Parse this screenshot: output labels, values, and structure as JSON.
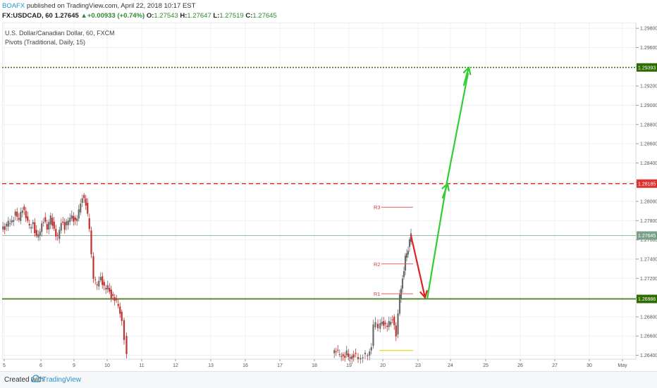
{
  "header": {
    "author": "BOAFX",
    "published": "published on TradingView.com, April 22, 2018 10:17 EST",
    "symbol": "FX:USDCAD, 60",
    "last": "1.27645",
    "change": "+0.00933 (+0.74%)",
    "o_label": "O:",
    "o": "1.27543",
    "h_label": "H:",
    "h": "1.27647",
    "l_label": "L:",
    "l": "1.27519",
    "c_label": "C:",
    "c": "1.27645"
  },
  "footer": {
    "created": "Created with",
    "brand": "TradingView"
  },
  "colors": {
    "up": "#6b6b6b",
    "down": "#c03030",
    "accent_green": "#2e8b2e",
    "arrow_green": "#33cc33",
    "arrow_red": "#dd2222",
    "resistance_red": "#e03030",
    "pivot_red": "#e06060",
    "s_yellow": "#e8d800",
    "brand": "#2196c9"
  },
  "chart_data": {
    "type": "candlestick",
    "instrument": "U.S. Dollar/Canadian Dollar, 60, FXCM",
    "indicator": "Pivots (Traditional, Daily, 15)",
    "ylim": [
      1.2636,
      1.2986
    ],
    "yticks": [
      "1.26400",
      "1.26600",
      "1.26800",
      "1.27000",
      "1.27200",
      "1.27400",
      "1.27600",
      "1.27800",
      "1.28000",
      "1.28200",
      "1.28400",
      "1.28600",
      "1.28800",
      "1.29000",
      "1.29200",
      "1.29400",
      "1.29600",
      "1.29800"
    ],
    "xticks": [
      "5",
      "6",
      "9",
      "10",
      "11",
      "12",
      "13",
      "16",
      "17",
      "18",
      "19",
      "20",
      "23",
      "24",
      "25",
      "26",
      "27",
      "30",
      "May"
    ],
    "price_series": [
      {
        "segment": "early",
        "points": [
          [
            0,
            1.2771
          ],
          [
            5,
            1.2772
          ],
          [
            10,
            1.2779
          ],
          [
            15,
            1.2778
          ],
          [
            20,
            1.2788
          ],
          [
            25,
            1.2782
          ],
          [
            30,
            1.2793
          ],
          [
            35,
            1.2784
          ],
          [
            40,
            1.2774
          ],
          [
            45,
            1.2776
          ],
          [
            50,
            1.2763
          ],
          [
            55,
            1.277
          ],
          [
            60,
            1.2781
          ],
          [
            65,
            1.2772
          ],
          [
            70,
            1.2784
          ],
          [
            75,
            1.2769
          ],
          [
            80,
            1.2763
          ],
          [
            85,
            1.2779
          ],
          [
            90,
            1.2773
          ],
          [
            95,
            1.2781
          ],
          [
            100,
            1.2784
          ],
          [
            105,
            1.2778
          ],
          [
            110,
            1.2791
          ],
          [
            115,
            1.2805
          ],
          [
            120,
            1.2798
          ],
          [
            125,
            1.2772
          ],
          [
            128,
            1.2745
          ],
          [
            131,
            1.2718
          ],
          [
            136,
            1.2714
          ],
          [
            141,
            1.272
          ],
          [
            146,
            1.271
          ],
          [
            151,
            1.2712
          ],
          [
            156,
            1.2701
          ],
          [
            161,
            1.2699
          ],
          [
            166,
            1.2692
          ],
          [
            171,
            1.2674
          ],
          [
            175,
            1.2658
          ],
          [
            178,
            1.2639
          ]
        ]
      },
      {
        "segment": "late",
        "points": [
          [
            470,
            1.264
          ],
          [
            475,
            1.2646
          ],
          [
            480,
            1.2641
          ],
          [
            485,
            1.2637
          ],
          [
            490,
            1.2643
          ],
          [
            495,
            1.2637
          ],
          [
            500,
            1.264
          ],
          [
            510,
            1.2637
          ],
          [
            520,
            1.2642
          ],
          [
            525,
            1.2649
          ],
          [
            528,
            1.2671
          ],
          [
            531,
            1.2675
          ],
          [
            535,
            1.267
          ],
          [
            540,
            1.2674
          ],
          [
            545,
            1.267
          ],
          [
            550,
            1.2674
          ],
          [
            555,
            1.2678
          ],
          [
            560,
            1.2662
          ],
          [
            563,
            1.2681
          ],
          [
            565,
            1.2701
          ],
          [
            567,
            1.2708
          ],
          [
            569,
            1.2722
          ],
          [
            571,
            1.2728
          ],
          [
            573,
            1.2741
          ],
          [
            575,
            1.2746
          ],
          [
            577,
            1.2751
          ],
          [
            579,
            1.276
          ],
          [
            581,
            1.27645
          ]
        ]
      }
    ],
    "pivot_levels": [
      {
        "name": "R3",
        "value": 1.2794
      },
      {
        "name": "R2",
        "value": 1.2735
      },
      {
        "name": "R1",
        "value": 1.2704
      },
      {
        "name": "S",
        "value": 1.2645
      }
    ],
    "horizontal_levels": [
      {
        "value": 1.29393,
        "label": "1.29393",
        "style": "dotted",
        "color": "#2e6b00"
      },
      {
        "value": 1.28185,
        "label": "1.28185",
        "style": "dashed",
        "color": "#e03030"
      },
      {
        "value": 1.27645,
        "label": "1.27645",
        "style": "thin",
        "color": "#7aa08a"
      },
      {
        "value": 1.26986,
        "label": "1.26986",
        "style": "solid",
        "color": "#2e6b00"
      }
    ],
    "arrows": [
      {
        "color": "red",
        "from_price": 1.27645,
        "to_price": 1.26986
      },
      {
        "color": "green",
        "from_price": 1.26986,
        "to_price": 1.28185
      },
      {
        "color": "green",
        "from_price": 1.28185,
        "to_price": 1.29393
      }
    ],
    "grid": true
  }
}
